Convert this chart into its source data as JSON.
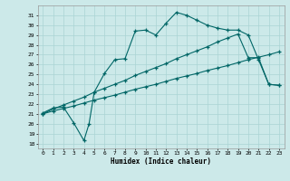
{
  "xlabel": "Humidex (Indice chaleur)",
  "bg_color": "#cce9e9",
  "grid_color": "#aad4d4",
  "line_color": "#006666",
  "xlim": [
    -0.5,
    23.5
  ],
  "ylim": [
    17.5,
    32.0
  ],
  "xtick_vals": [
    0,
    1,
    2,
    3,
    4,
    5,
    6,
    7,
    8,
    9,
    10,
    11,
    12,
    13,
    14,
    15,
    16,
    17,
    18,
    19,
    20,
    21,
    22,
    23
  ],
  "ytick_vals": [
    18,
    19,
    20,
    21,
    22,
    23,
    24,
    25,
    26,
    27,
    28,
    29,
    30,
    31
  ],
  "line1_x": [
    0,
    1,
    2,
    3,
    4,
    5,
    6,
    7,
    8,
    9,
    10,
    11,
    12,
    13,
    14,
    15,
    16,
    17,
    18,
    19,
    20,
    21,
    22,
    23
  ],
  "line1_y": [
    21.0,
    21.3,
    21.55,
    21.8,
    22.1,
    22.4,
    22.65,
    22.9,
    23.2,
    23.5,
    23.75,
    24.0,
    24.3,
    24.6,
    24.85,
    25.1,
    25.4,
    25.65,
    25.9,
    26.2,
    26.5,
    26.75,
    27.0,
    27.3
  ],
  "line2_x": [
    0,
    1,
    2,
    3,
    4,
    5,
    6,
    7,
    8,
    9,
    10,
    11,
    12,
    13,
    14,
    15,
    16,
    17,
    18,
    19,
    20,
    21,
    22,
    23
  ],
  "line2_y": [
    21.0,
    21.5,
    21.9,
    22.3,
    22.7,
    23.2,
    23.6,
    24.0,
    24.4,
    24.9,
    25.3,
    25.7,
    26.1,
    26.6,
    27.0,
    27.4,
    27.8,
    28.3,
    28.7,
    29.1,
    26.7,
    26.7,
    24.0,
    23.9
  ],
  "line3_x": [
    0,
    1,
    2,
    3,
    4,
    4.5,
    5,
    6,
    7,
    8,
    9,
    10,
    11,
    12,
    13,
    14,
    15,
    16,
    17,
    18,
    19,
    20,
    21,
    22,
    23
  ],
  "line3_y": [
    21.1,
    21.6,
    21.7,
    20.1,
    18.3,
    20.0,
    23.2,
    25.1,
    26.5,
    26.6,
    29.4,
    29.5,
    29.0,
    30.2,
    31.3,
    31.0,
    30.5,
    30.0,
    29.7,
    29.5,
    29.5,
    29.0,
    26.5,
    24.0,
    23.9
  ]
}
